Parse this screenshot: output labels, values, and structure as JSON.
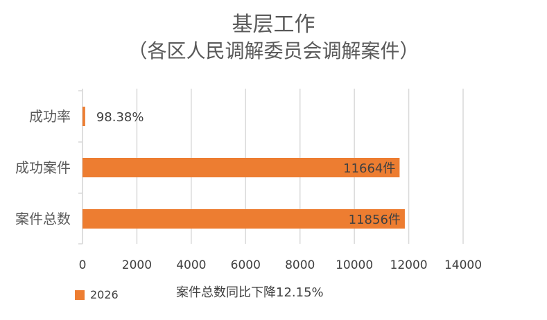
{
  "chart_data": {
    "type": "bar",
    "orientation": "horizontal",
    "title_line1": "基层工作",
    "title_line2": "（各区人民调解委员会调解案件）",
    "categories": [
      "成功率",
      "成功案件",
      "案件总数"
    ],
    "series": [
      {
        "name": "2026",
        "color": "#ED7D31",
        "values": [
          98.38,
          11664,
          11856
        ],
        "labels": [
          "98.38%",
          "11664件",
          "11856件"
        ]
      }
    ],
    "xlim": [
      0,
      14000
    ],
    "xticks": [
      0,
      2000,
      4000,
      6000,
      8000,
      10000,
      12000,
      14000
    ],
    "xtick_labels": [
      "0",
      "2000",
      "4000",
      "6000",
      "8000",
      "10000",
      "12000",
      "14000"
    ],
    "grid": true,
    "legend_position": "bottom-left",
    "annotation": "案件总数同比下降12.15%"
  }
}
